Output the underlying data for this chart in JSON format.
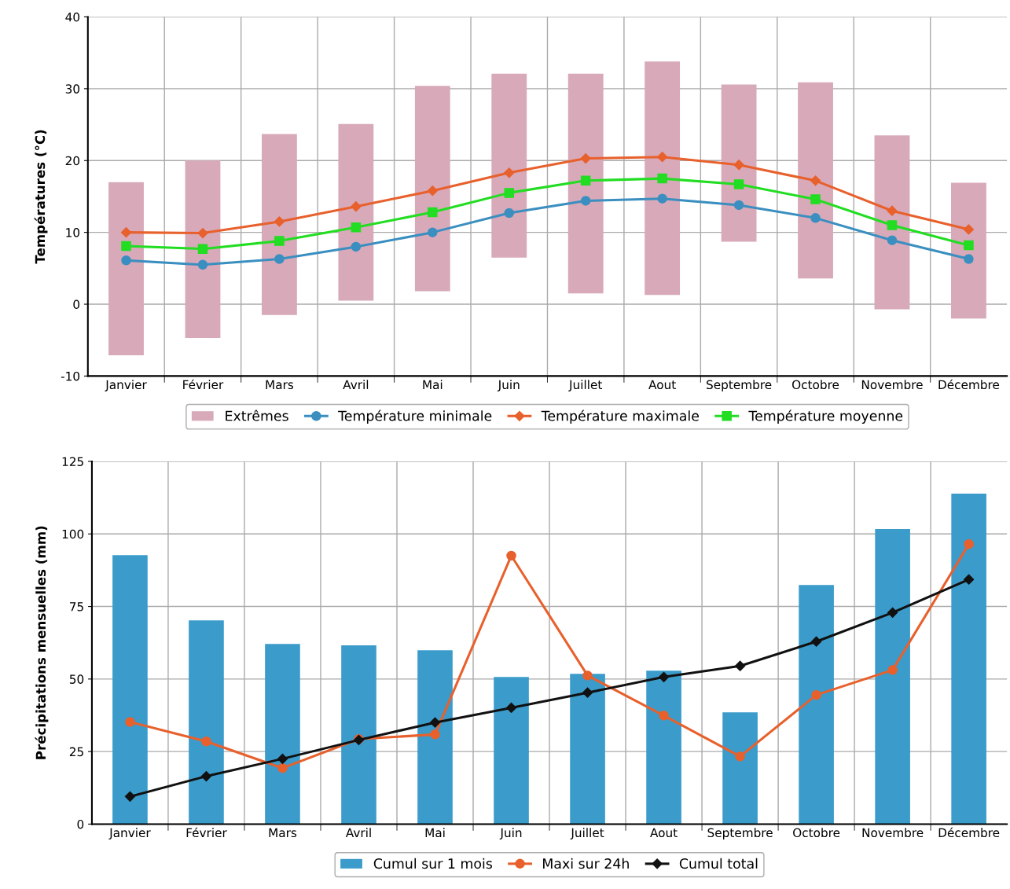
{
  "chart_data": [
    {
      "type": "bar",
      "ylabel": "Températures (°C)",
      "categories": [
        "Janvier",
        "Février",
        "Mars",
        "Avril",
        "Mai",
        "Juin",
        "Juillet",
        "Aout",
        "Septembre",
        "Octobre",
        "Novembre",
        "Décembre"
      ],
      "ylim": [
        -10,
        40
      ],
      "yticks": [
        -10,
        0,
        10,
        20,
        30,
        40
      ],
      "grid": true,
      "legend": "bottom",
      "series": [
        {
          "name": "Extrêmes",
          "color": "#d8a9b9",
          "base": [
            -7.1,
            -4.7,
            -1.5,
            0.5,
            1.8,
            6.5,
            1.5,
            1.3,
            8.7,
            3.6,
            -0.7,
            -2.0
          ],
          "values": [
            24.1,
            24.7,
            25.2,
            24.6,
            28.6,
            25.6,
            30.6,
            32.5,
            21.9,
            27.3,
            24.2,
            18.9
          ]
        },
        {
          "name": "Température minimale",
          "type": "line",
          "color": "#3a8fc0",
          "marker": "circle",
          "values": [
            6.1,
            5.5,
            6.3,
            8.0,
            10.0,
            12.7,
            14.4,
            14.7,
            13.8,
            12.0,
            8.9,
            6.3
          ]
        },
        {
          "name": "Température maximale",
          "type": "line",
          "color": "#e8602c",
          "marker": "diamond",
          "values": [
            10.0,
            9.9,
            11.5,
            13.6,
            15.8,
            18.3,
            20.3,
            20.5,
            19.4,
            17.2,
            13.0,
            10.4
          ]
        },
        {
          "name": "Température moyenne",
          "type": "line",
          "color": "#22dd22",
          "marker": "square",
          "values": [
            8.1,
            7.7,
            8.8,
            10.7,
            12.8,
            15.5,
            17.2,
            17.5,
            16.7,
            14.6,
            11.0,
            8.2
          ]
        }
      ]
    },
    {
      "type": "bar",
      "ylabel": "Précipitations mensuelles (mm)",
      "categories": [
        "Janvier",
        "Février",
        "Mars",
        "Avril",
        "Mai",
        "Juin",
        "Juillet",
        "Aout",
        "Septembre",
        "Octobre",
        "Novembre",
        "Décembre"
      ],
      "ylim": [
        0,
        125
      ],
      "yticks": [
        0,
        25,
        50,
        75,
        100,
        125
      ],
      "grid": true,
      "legend": "bottom",
      "series": [
        {
          "name": "Cumul sur 1 mois",
          "color": "#3b9ccb",
          "values": [
            92.7,
            70.2,
            62.1,
            61.6,
            59.9,
            50.7,
            51.8,
            52.9,
            38.5,
            82.4,
            101.7,
            113.9
          ]
        },
        {
          "name": "Maxi sur 24h",
          "type": "line",
          "color": "#e8602c",
          "marker": "circle",
          "values": [
            35.2,
            28.5,
            19.3,
            29.3,
            30.9,
            92.5,
            51.2,
            37.4,
            23.3,
            44.5,
            53.1,
            96.5
          ]
        },
        {
          "name": "Cumul total",
          "type": "line",
          "color": "#111111",
          "marker": "diamond",
          "values": [
            9.5,
            16.5,
            22.5,
            29.0,
            35.0,
            40.1,
            45.3,
            50.7,
            54.5,
            62.9,
            72.9,
            84.3
          ]
        }
      ]
    }
  ]
}
